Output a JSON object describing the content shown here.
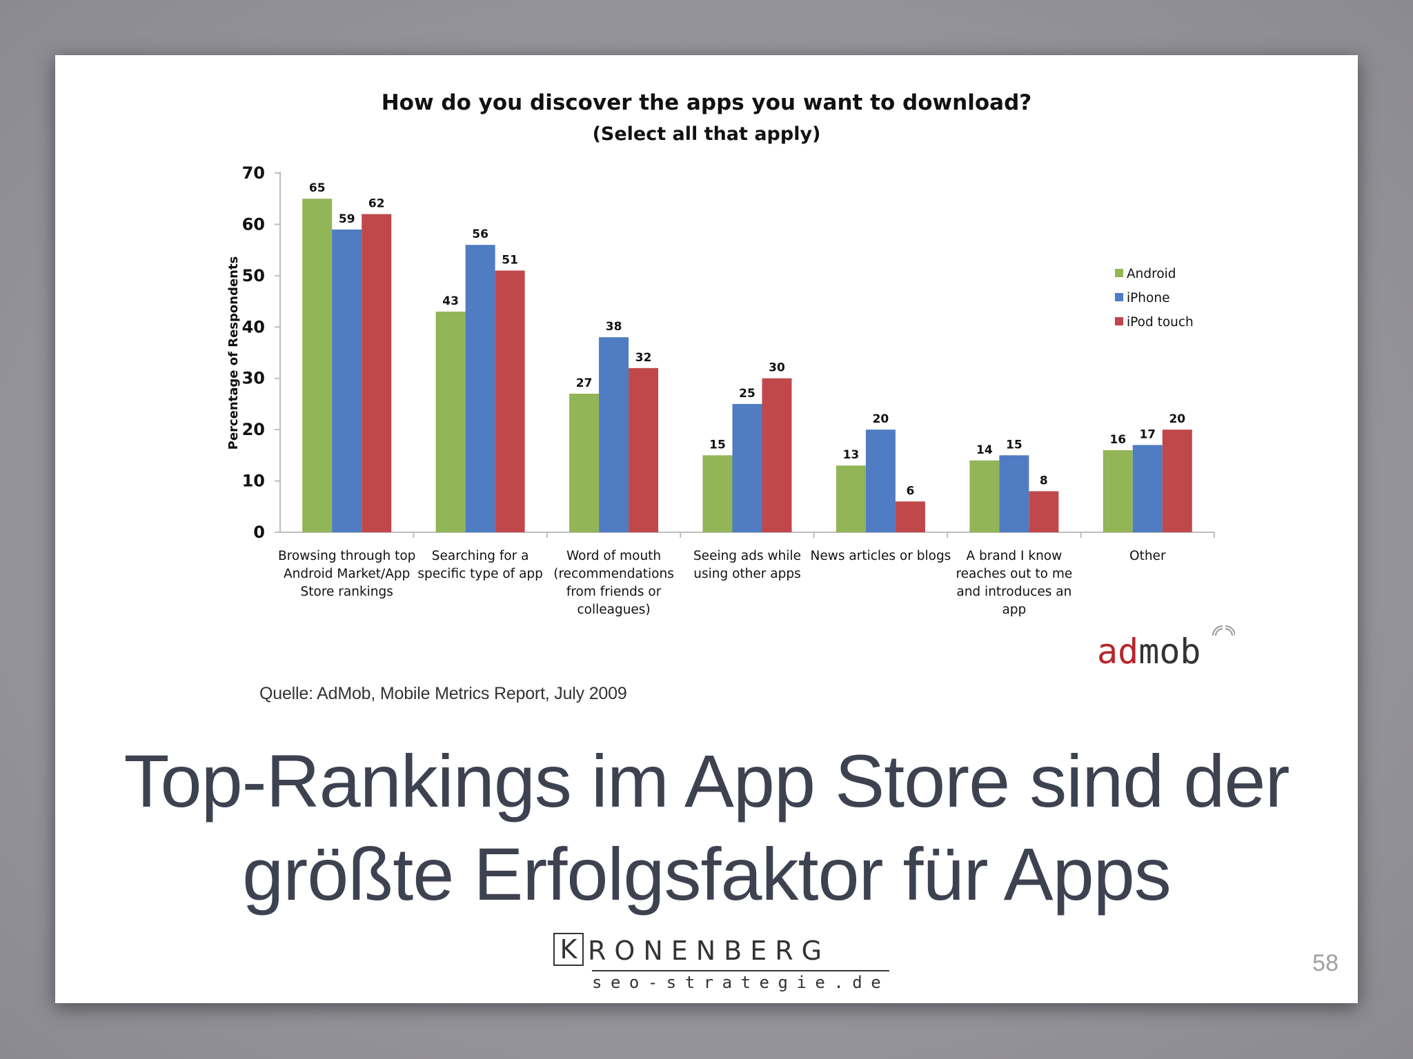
{
  "chart_data": {
    "type": "bar",
    "title": "How do you discover the apps you want to download?",
    "subtitle": "(Select all that apply)",
    "ylabel": "Percentage of Respondents",
    "xlabel": "",
    "ylim": [
      0,
      70
    ],
    "yticks": [
      0,
      10,
      20,
      30,
      40,
      50,
      60,
      70
    ],
    "grid": false,
    "legend_position": "right",
    "categories": [
      [
        "Browsing through top",
        "Android Market/App",
        "Store rankings"
      ],
      [
        "Searching for a",
        "specific type of app"
      ],
      [
        "Word of mouth",
        "(recommendations",
        "from friends or",
        "colleagues)"
      ],
      [
        "Seeing ads while",
        "using other apps"
      ],
      [
        "News articles or blogs"
      ],
      [
        "A brand I know",
        "reaches out to me",
        "and introduces an",
        "app"
      ],
      [
        "Other"
      ]
    ],
    "series": [
      {
        "name": "Android",
        "color": "#92b557",
        "values": [
          65,
          43,
          27,
          15,
          13,
          14,
          16
        ]
      },
      {
        "name": "iPhone",
        "color": "#4f7cc2",
        "values": [
          59,
          56,
          38,
          25,
          20,
          15,
          17
        ]
      },
      {
        "name": "iPod touch",
        "color": "#c0484a",
        "values": [
          62,
          51,
          32,
          30,
          6,
          8,
          20
        ]
      }
    ]
  },
  "admob_logo": {
    "part1": "ad",
    "part2": "mob",
    "color1": "#b8242a",
    "color2": "#333333"
  },
  "source_text": "Quelle: AdMob, Mobile Metrics Report, July 2009",
  "headline": {
    "line1": "Top-Rankings im App Store sind der",
    "line2": "größte Erfolgsfaktor für Apps"
  },
  "brand": {
    "initial": "K",
    "rest": "RONENBERG",
    "domain": "seo-strategie.de"
  },
  "page_number": "58"
}
